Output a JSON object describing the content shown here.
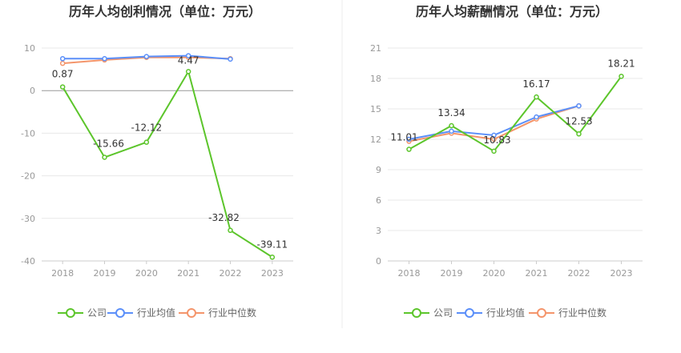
{
  "chart_data": [
    {
      "type": "line",
      "title": "历年人均创利情况（单位：万元）",
      "categories": [
        "2018",
        "2019",
        "2020",
        "2021",
        "2022",
        "2023"
      ],
      "ylim": [
        -40,
        10
      ],
      "yticks": [
        10,
        0,
        -10,
        -20,
        -30,
        -40
      ],
      "grid": true,
      "legend_placement": "bottom",
      "series": [
        {
          "name": "公司",
          "color": "#5cc52b",
          "values": [
            0.87,
            -15.66,
            -12.12,
            4.47,
            -32.82,
            -39.11
          ],
          "labels": [
            "0.87",
            "-15.66",
            "-12.12",
            "4.47",
            "-32.82",
            "-39.11"
          ]
        },
        {
          "name": "行业均值",
          "color": "#5b8ff9",
          "values": [
            7.5,
            7.5,
            8.0,
            8.2,
            7.4,
            null
          ]
        },
        {
          "name": "行业中位数",
          "color": "#f4956b",
          "values": [
            6.4,
            7.2,
            7.8,
            7.8,
            7.5,
            null
          ]
        }
      ]
    },
    {
      "type": "line",
      "title": "历年人均薪酬情况（单位：万元）",
      "categories": [
        "2018",
        "2019",
        "2020",
        "2021",
        "2022",
        "2023"
      ],
      "ylim": [
        0,
        21
      ],
      "yticks": [
        21,
        18,
        15,
        12,
        9,
        6,
        3,
        0
      ],
      "grid": true,
      "legend_placement": "bottom",
      "series": [
        {
          "name": "公司",
          "color": "#5cc52b",
          "values": [
            11.01,
            13.34,
            10.83,
            16.17,
            12.53,
            18.21
          ],
          "labels": [
            "11.01",
            "13.34",
            "10.83",
            "16.17",
            "12.53",
            "18.21"
          ]
        },
        {
          "name": "行业均值",
          "color": "#5b8ff9",
          "values": [
            12.0,
            12.8,
            12.4,
            14.2,
            15.3,
            null
          ]
        },
        {
          "name": "行业中位数",
          "color": "#f4956b",
          "values": [
            11.8,
            12.6,
            12.0,
            14.0,
            15.3,
            null
          ]
        }
      ]
    }
  ]
}
